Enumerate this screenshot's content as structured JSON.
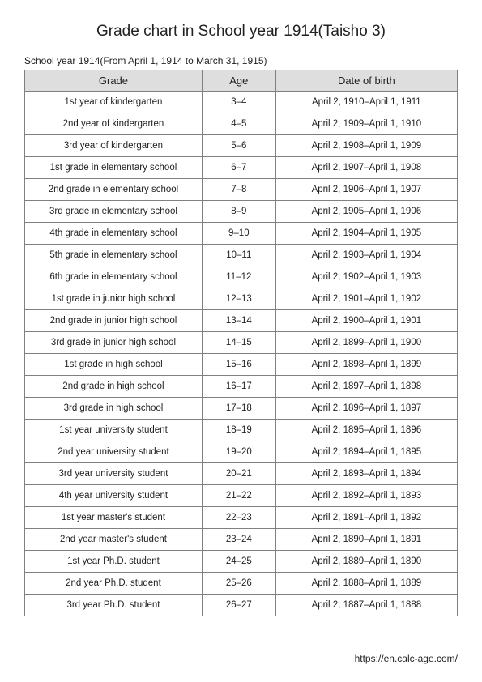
{
  "title": "Grade chart in School year 1914(Taisho 3)",
  "subtitle": "School year 1914(From April 1, 1914 to March 31, 1915)",
  "columns": [
    "Grade",
    "Age",
    "Date of birth"
  ],
  "rows": [
    [
      "1st year of kindergarten",
      "3–4",
      "April 2, 1910–April 1, 1911"
    ],
    [
      "2nd year of kindergarten",
      "4–5",
      "April 2, 1909–April 1, 1910"
    ],
    [
      "3rd year of kindergarten",
      "5–6",
      "April 2, 1908–April 1, 1909"
    ],
    [
      "1st grade in elementary school",
      "6–7",
      "April 2, 1907–April 1, 1908"
    ],
    [
      "2nd grade in elementary school",
      "7–8",
      "April 2, 1906–April 1, 1907"
    ],
    [
      "3rd grade in elementary school",
      "8–9",
      "April 2, 1905–April 1, 1906"
    ],
    [
      "4th grade in elementary school",
      "9–10",
      "April 2, 1904–April 1, 1905"
    ],
    [
      "5th grade in elementary school",
      "10–11",
      "April 2, 1903–April 1, 1904"
    ],
    [
      "6th grade in elementary school",
      "11–12",
      "April 2, 1902–April 1, 1903"
    ],
    [
      "1st grade in junior high school",
      "12–13",
      "April 2, 1901–April 1, 1902"
    ],
    [
      "2nd grade in junior high school",
      "13–14",
      "April 2, 1900–April 1, 1901"
    ],
    [
      "3rd grade in junior high school",
      "14–15",
      "April 2, 1899–April 1, 1900"
    ],
    [
      "1st grade in high school",
      "15–16",
      "April 2, 1898–April 1, 1899"
    ],
    [
      "2nd grade in high school",
      "16–17",
      "April 2, 1897–April 1, 1898"
    ],
    [
      "3rd grade in high school",
      "17–18",
      "April 2, 1896–April 1, 1897"
    ],
    [
      "1st year university student",
      "18–19",
      "April 2, 1895–April 1, 1896"
    ],
    [
      "2nd year university student",
      "19–20",
      "April 2, 1894–April 1, 1895"
    ],
    [
      "3rd year university student",
      "20–21",
      "April 2, 1893–April 1, 1894"
    ],
    [
      "4th year university student",
      "21–22",
      "April 2, 1892–April 1, 1893"
    ],
    [
      "1st year master's student",
      "22–23",
      "April 2, 1891–April 1, 1892"
    ],
    [
      "2nd year master's student",
      "23–24",
      "April 2, 1890–April 1, 1891"
    ],
    [
      "1st year Ph.D. student",
      "24–25",
      "April 2, 1889–April 1, 1890"
    ],
    [
      "2nd year Ph.D. student",
      "25–26",
      "April 2, 1888–April 1, 1889"
    ],
    [
      "3rd year Ph.D. student",
      "26–27",
      "April 2, 1887–April 1, 1888"
    ]
  ],
  "footer": "https://en.calc-age.com/"
}
